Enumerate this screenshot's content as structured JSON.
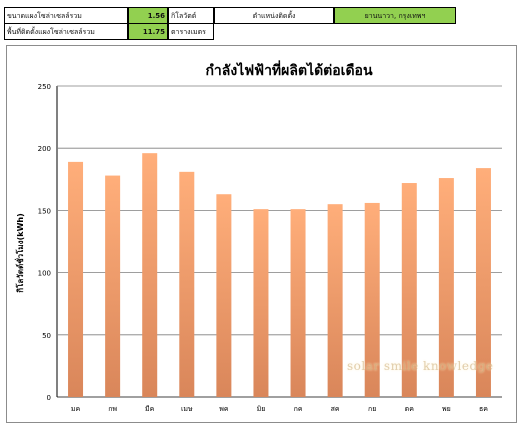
{
  "header": {
    "row1": {
      "panel_size_label": "ขนาดแผงโซล่าเซลล์รวม",
      "panel_size_value": "1.56",
      "panel_size_unit": "กิโลวัตต์",
      "location_label": "ตำแหน่งติดตั้ง",
      "location_value": "ยานนาวา, กรุงเทพฯ"
    },
    "row2": {
      "area_label": "พื้นที่ติดตั้งแผงโซล่าเซลล์รวม",
      "area_value": "11.75",
      "area_unit": "ตารางเมตร"
    }
  },
  "watermark": "solar smile knowledge",
  "colors": {
    "header_green": "#92d050",
    "bar_top": "#ffae7a",
    "bar_bottom": "#d9865a",
    "grid": "#7f7f7f"
  },
  "chart_data": {
    "type": "bar",
    "title": "กำลังไฟฟ้าที่ผลิตได้ต่อเดือน",
    "ylabel": "กิโลวัตต์ชั่วโมง(kWh)",
    "xlabel": "",
    "categories": [
      "มค",
      "กพ",
      "มีค",
      "เมษ",
      "พค",
      "มิย",
      "กค",
      "สค",
      "กย",
      "ตค",
      "พย",
      "ธค"
    ],
    "values": [
      189,
      178,
      196,
      181,
      163,
      151,
      151,
      155,
      156,
      172,
      176,
      184
    ],
    "ylim": [
      0,
      250
    ],
    "yticks": [
      0,
      50,
      100,
      150,
      200,
      250
    ],
    "grid": true,
    "legend": "none"
  }
}
